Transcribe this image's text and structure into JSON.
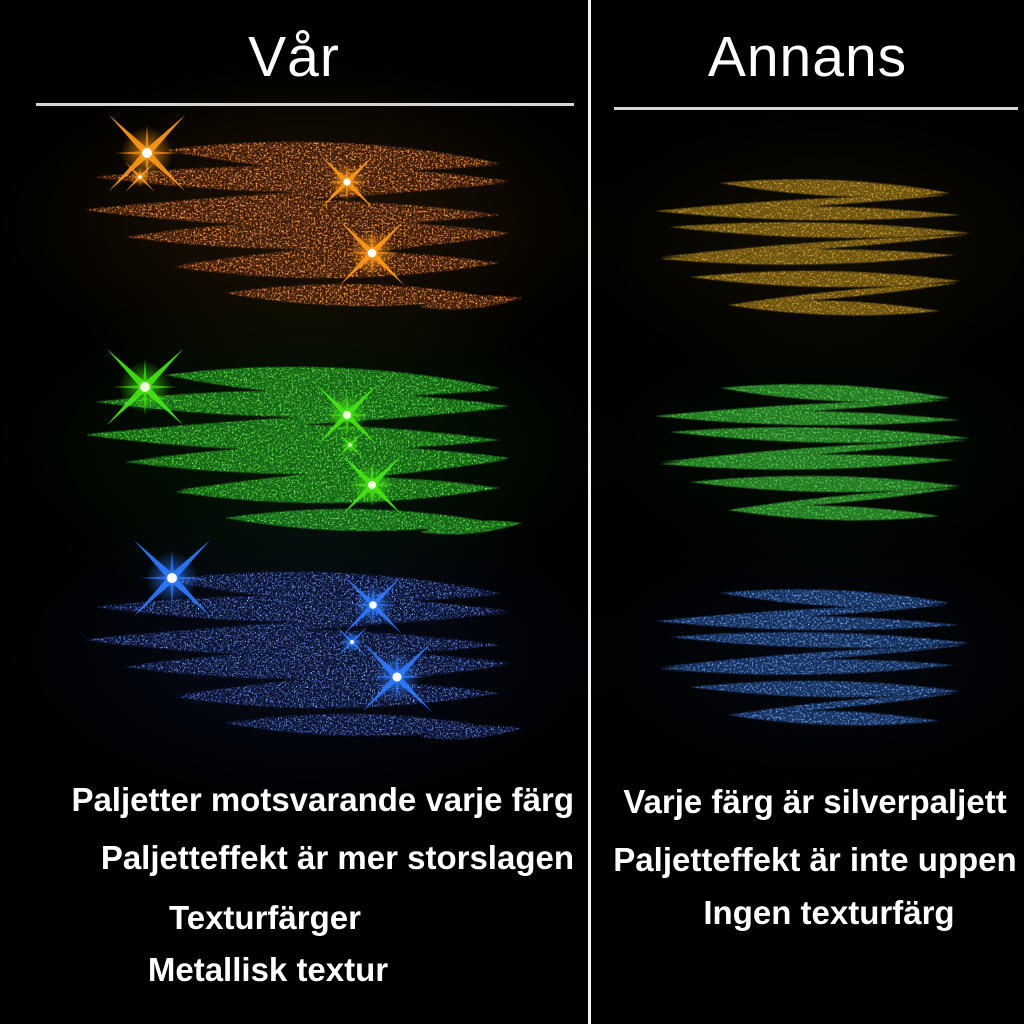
{
  "background": "#000000",
  "text_color": "#ffffff",
  "divider_color": "#f2f2f2",
  "underline_color": "#d6d6d6",
  "left_panel": {
    "title": "Vår",
    "captions": [
      "Paljetter motsvarande varje färg",
      "Paljetteffekt är mer storslagen",
      "Texturfärger",
      "Metallisk textur"
    ],
    "swatches": [
      {
        "name": "copper",
        "base": "#3f1c07",
        "speck": "#d97b2e",
        "glint": "#ffcf8a",
        "star_ray": "#ff9a1a",
        "star_core": "#ffffff",
        "glow": "rgba(190,120,20,0.16)"
      },
      {
        "name": "green",
        "base": "#146614",
        "speck": "#3fbf30",
        "glint": "#c4ffa8",
        "star_ray": "#46e814",
        "star_core": "#eeffd8",
        "glow": "rgba(40,180,40,0.13)"
      },
      {
        "name": "blue",
        "base": "#0a1232",
        "speck": "#3a5fb8",
        "glint": "#d4e4ff",
        "star_ray": "#2f7bff",
        "star_core": "#ffffff",
        "glow": "rgba(50,90,220,0.12)"
      }
    ]
  },
  "right_panel": {
    "title": "Annans",
    "captions": [
      "Varje färg är silverpaljett",
      "Paljetteffekt är inte uppen",
      "Ingen texturfärg"
    ],
    "swatches": [
      {
        "name": "gold",
        "base": "#6e5310",
        "speck": "#b8922c",
        "glint": "#e6cc74",
        "glow": "rgba(160,130,30,0.10)"
      },
      {
        "name": "green",
        "base": "#227a22",
        "speck": "#53b84a",
        "glint": "#aee8a0",
        "glow": "rgba(40,160,40,0.08)"
      },
      {
        "name": "blue",
        "base": "#16305e",
        "speck": "#4f7fc4",
        "glint": "#cfe6ff",
        "glow": "rgba(50,100,200,0.08)"
      }
    ]
  }
}
